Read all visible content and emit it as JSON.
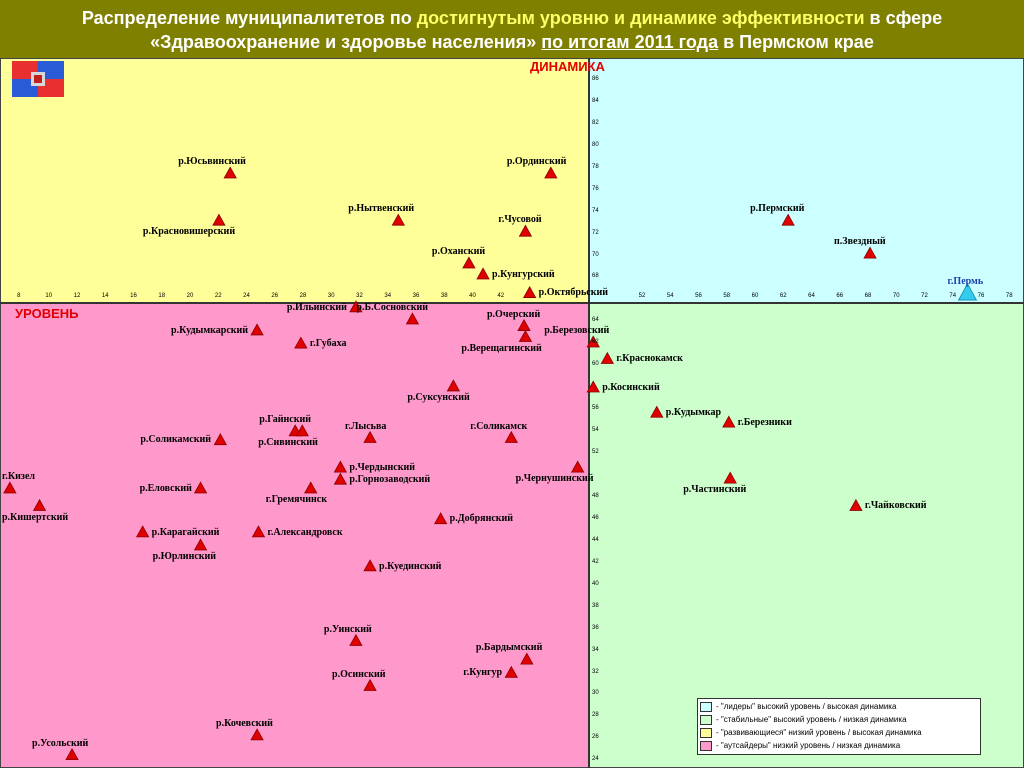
{
  "header": {
    "line1": [
      {
        "text": "Распределение муниципалитетов по ",
        "style": "plain"
      },
      {
        "text": "достигнутым уровню и динамике эффективности",
        "style": "hl"
      },
      {
        "text": " в сфере",
        "style": "plain"
      }
    ],
    "line2": [
      {
        "text": "«Здравоохранение и здоровье населения» ",
        "style": "plain"
      },
      {
        "text": "по итогам 2011 года",
        "style": "ul"
      },
      {
        "text": " в Пермском крае",
        "style": "plain"
      }
    ]
  },
  "colors": {
    "leaders": "#ccffff",
    "stable": "#ccffcc",
    "developing": "#ffff99",
    "outsiders": "#ff99cc",
    "marker": "#e00000",
    "marker_highlight": "#33ccee",
    "axis_label": "#e00000"
  },
  "icons": {
    "flag": "perm-krai-flag-icon"
  },
  "chart_data": {
    "type": "scatter",
    "xlabel": "УРОВЕНЬ",
    "ylabel": "ДИНАМИКА",
    "xlim": [
      6.5,
      79
    ],
    "ylim": [
      23.3,
      88
    ],
    "x_cross": 48.5,
    "y_cross": 68.5,
    "x_ticks": [
      8,
      10,
      12,
      14,
      16,
      18,
      20,
      22,
      24,
      26,
      28,
      30,
      32,
      34,
      36,
      38,
      40,
      42,
      52,
      54,
      56,
      58,
      60,
      62,
      64,
      66,
      68,
      70,
      72,
      74,
      76,
      78
    ],
    "y_ticks": [
      86,
      84,
      82,
      80,
      78,
      76,
      74,
      72,
      70,
      68,
      64,
      62,
      60,
      56,
      54,
      52,
      48,
      46,
      44,
      42,
      40,
      38,
      36,
      34,
      32,
      30,
      28,
      26,
      24
    ],
    "grid": false,
    "legend_placement": "bottom-right",
    "points": [
      {
        "name": "р.Юсьвинский",
        "x": 22.8,
        "y": 77.5,
        "lp": "top-left"
      },
      {
        "name": "р.Ординский",
        "x": 45.5,
        "y": 77.5,
        "lp": "top-left"
      },
      {
        "name": "р.Нытвенский",
        "x": 34.7,
        "y": 73.2,
        "lp": "top-left"
      },
      {
        "name": "г.Чусовой",
        "x": 43.7,
        "y": 72.2,
        "lp": "top-left"
      },
      {
        "name": "р.Красновишерский",
        "x": 22.0,
        "y": 73.2,
        "lp": "bottom-left"
      },
      {
        "name": "р.Пермский",
        "x": 62.3,
        "y": 73.2,
        "lp": "top-left"
      },
      {
        "name": "п.Звездный",
        "x": 68.1,
        "y": 70.2,
        "lp": "top-left"
      },
      {
        "name": "р.Оханский",
        "x": 39.7,
        "y": 69.3,
        "lp": "top-left"
      },
      {
        "name": "р.Кунгурский",
        "x": 40.7,
        "y": 68.3,
        "lp": "right"
      },
      {
        "name": "р.Октябрьский",
        "x": 44.0,
        "y": 66.6,
        "lp": "right"
      },
      {
        "name": "г.Пермь",
        "x": 75.0,
        "y": 66.6,
        "lp": "top-left",
        "highlight": true
      },
      {
        "name": "р.Ильинский",
        "x": 31.7,
        "y": 65.3,
        "lp": "left"
      },
      {
        "name": "р.Б.Сосновский",
        "x": 35.7,
        "y": 64.2,
        "lp": "top-left"
      },
      {
        "name": "р.Очерский",
        "x": 43.6,
        "y": 63.6,
        "lp": "top-left"
      },
      {
        "name": "р.Кудымкарский",
        "x": 24.7,
        "y": 63.2,
        "lp": "left"
      },
      {
        "name": "р.Березовский",
        "x": 48.5,
        "y": 62.1,
        "lp": "top-left"
      },
      {
        "name": "г.Губаха",
        "x": 27.8,
        "y": 62.0,
        "lp": "right"
      },
      {
        "name": "р.Верещагинский",
        "x": 43.7,
        "y": 62.6,
        "lp": "bottom-left"
      },
      {
        "name": "г.Краснокамск",
        "x": 49.5,
        "y": 60.6,
        "lp": "right"
      },
      {
        "name": "р.Суксунский",
        "x": 38.6,
        "y": 58.1,
        "lp": "bottom-left"
      },
      {
        "name": "р.Косинский",
        "x": 48.5,
        "y": 58.0,
        "lp": "right"
      },
      {
        "name": "р.Кудымкар",
        "x": 53.0,
        "y": 55.7,
        "lp": "right"
      },
      {
        "name": "г.Березники",
        "x": 58.1,
        "y": 54.8,
        "lp": "right"
      },
      {
        "name": "р.Гайнский",
        "x": 27.4,
        "y": 54.0,
        "lp": "top-left"
      },
      {
        "name": "р.Сивинский",
        "x": 27.9,
        "y": 54.0,
        "lp": "bottom-left"
      },
      {
        "name": "г.Лысьва",
        "x": 32.7,
        "y": 53.4,
        "lp": "top-left"
      },
      {
        "name": "г.Соликамск",
        "x": 42.7,
        "y": 53.4,
        "lp": "top-left"
      },
      {
        "name": "р.Соликамский",
        "x": 22.1,
        "y": 53.2,
        "lp": "left"
      },
      {
        "name": "р.Чердынский",
        "x": 30.6,
        "y": 50.7,
        "lp": "right"
      },
      {
        "name": "р.Горнозаводский",
        "x": 30.6,
        "y": 49.6,
        "lp": "right"
      },
      {
        "name": "р.Чернушинский",
        "x": 47.4,
        "y": 50.7,
        "lp": "bottom-left"
      },
      {
        "name": "р.Частинский",
        "x": 58.2,
        "y": 49.7,
        "lp": "bottom-left"
      },
      {
        "name": "г.Кизел",
        "x": 7.2,
        "y": 48.8,
        "lp": "top-left"
      },
      {
        "name": "р.Еловский",
        "x": 20.7,
        "y": 48.8,
        "lp": "left"
      },
      {
        "name": "г.Гремячинск",
        "x": 28.5,
        "y": 48.8,
        "lp": "bottom-left"
      },
      {
        "name": "р.Кишертский",
        "x": 9.3,
        "y": 47.2,
        "lp": "bottom-left"
      },
      {
        "name": "г.Чайковский",
        "x": 67.1,
        "y": 47.2,
        "lp": "right"
      },
      {
        "name": "р.Добрянский",
        "x": 37.7,
        "y": 46.0,
        "lp": "right"
      },
      {
        "name": "р.Карагайский",
        "x": 16.6,
        "y": 44.8,
        "lp": "right"
      },
      {
        "name": "г.Александровск",
        "x": 24.8,
        "y": 44.8,
        "lp": "right"
      },
      {
        "name": "р.Юрлинский",
        "x": 20.7,
        "y": 43.6,
        "lp": "bottom-left"
      },
      {
        "name": "р.Куединский",
        "x": 32.7,
        "y": 41.7,
        "lp": "right"
      },
      {
        "name": "р.Уинский",
        "x": 31.7,
        "y": 34.9,
        "lp": "top-left"
      },
      {
        "name": "р.Бардымский",
        "x": 43.8,
        "y": 33.2,
        "lp": "top-left"
      },
      {
        "name": "г.Кунгур",
        "x": 42.7,
        "y": 32.0,
        "lp": "left"
      },
      {
        "name": "р.Осинский",
        "x": 32.7,
        "y": 30.8,
        "lp": "top-left"
      },
      {
        "name": "р.Кочевский",
        "x": 24.7,
        "y": 26.3,
        "lp": "top-left"
      },
      {
        "name": "р.Усольский",
        "x": 11.6,
        "y": 24.5,
        "lp": "top-left"
      }
    ]
  },
  "legend": [
    {
      "text": "- \"лидеры\" высокий уровень / высокая динамика",
      "color": "#ccffff"
    },
    {
      "text": "- \"стабильные\" высокий уровень / низкая динамика",
      "color": "#ccffcc"
    },
    {
      "text": "- \"развивающиеся\" низкий уровень / высокая динамика",
      "color": "#ffff99"
    },
    {
      "text": "- \"аутсайдеры\" низкий уровень / низкая динамика",
      "color": "#ff99cc"
    }
  ]
}
